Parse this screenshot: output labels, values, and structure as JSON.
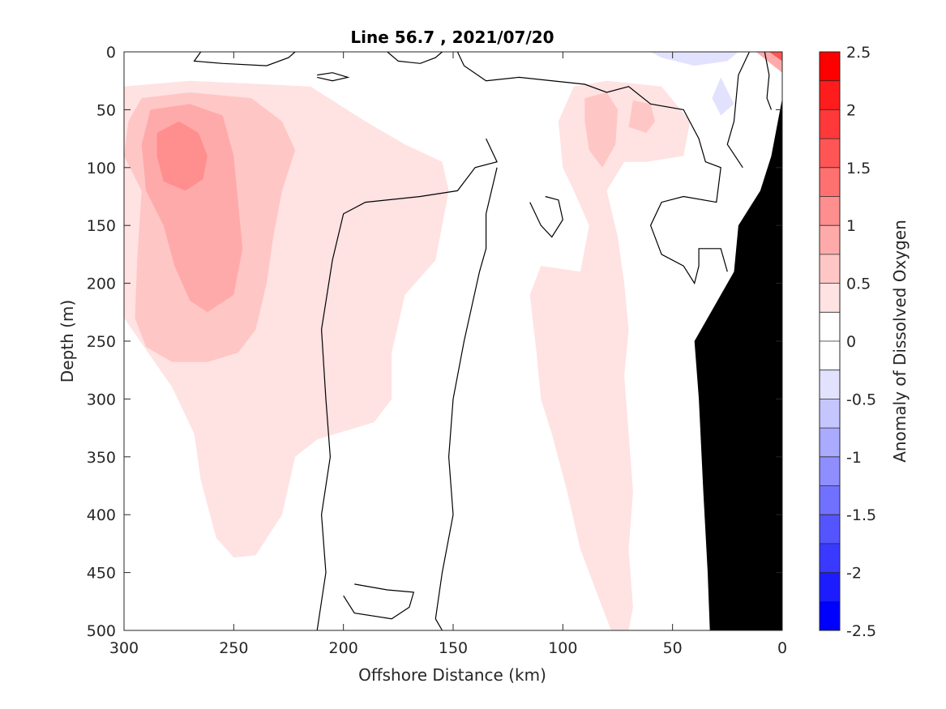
{
  "chart_data": {
    "type": "heatmap",
    "title": "Line 56.7 , 2021/07/20",
    "xlabel": "Offshore Distance (km)",
    "ylabel": "Depth (m)",
    "colorbar_label": "Anomaly of Dissolved Oxygen",
    "xlim": [
      300,
      0
    ],
    "ylim": [
      0,
      500
    ],
    "x_direction": "reversed",
    "y_direction": "reversed (depth increases downward)",
    "x_ticks": [
      "300",
      "250",
      "200",
      "150",
      "100",
      "50",
      "0"
    ],
    "y_ticks": [
      "0",
      "50",
      "100",
      "150",
      "200",
      "250",
      "300",
      "350",
      "400",
      "450",
      "500"
    ],
    "colorbar_ticks": [
      "2.5",
      "2",
      "1.5",
      "1",
      "0.5",
      "0",
      "-0.5",
      "-1",
      "-1.5",
      "-2",
      "-2.5"
    ],
    "colorbar_range": [
      -2.5,
      2.5
    ],
    "colorbar_levels": [
      {
        "from": 2.25,
        "to": 2.5,
        "color": "#ff0000"
      },
      {
        "from": 2.0,
        "to": 2.25,
        "color": "#ff1c1c"
      },
      {
        "from": 1.75,
        "to": 2.0,
        "color": "#ff3939"
      },
      {
        "from": 1.5,
        "to": 1.75,
        "color": "#ff5555"
      },
      {
        "from": 1.25,
        "to": 1.5,
        "color": "#ff7171"
      },
      {
        "from": 1.0,
        "to": 1.25,
        "color": "#ff8e8e"
      },
      {
        "from": 0.75,
        "to": 1.0,
        "color": "#ffaaaa"
      },
      {
        "from": 0.5,
        "to": 0.75,
        "color": "#ffc6c6"
      },
      {
        "from": 0.25,
        "to": 0.5,
        "color": "#ffe2e2"
      },
      {
        "from": 0.0,
        "to": 0.25,
        "color": "#ffffff"
      },
      {
        "from": -0.25,
        "to": 0.0,
        "color": "#ffffff"
      },
      {
        "from": -0.5,
        "to": -0.25,
        "color": "#e2e2ff"
      },
      {
        "from": -0.75,
        "to": -0.5,
        "color": "#c6c6ff"
      },
      {
        "from": -1.0,
        "to": -0.75,
        "color": "#aaaaff"
      },
      {
        "from": -1.25,
        "to": -1.0,
        "color": "#8e8eff"
      },
      {
        "from": -1.5,
        "to": -1.25,
        "color": "#7171ff"
      },
      {
        "from": -1.75,
        "to": -1.5,
        "color": "#5555ff"
      },
      {
        "from": -2.0,
        "to": -1.75,
        "color": "#3939ff"
      },
      {
        "from": -2.25,
        "to": -2.0,
        "color": "#1c1cff"
      },
      {
        "from": -2.5,
        "to": -2.25,
        "color": "#0000ff"
      }
    ],
    "regions": [
      {
        "name": "offshore-positive-anomaly",
        "level": 0.375,
        "color": "#ffe2e2",
        "points": [
          [
            300,
            30
          ],
          [
            270,
            25
          ],
          [
            215,
            30
          ],
          [
            190,
            60
          ],
          [
            172,
            80
          ],
          [
            155,
            95
          ],
          [
            152,
            120
          ],
          [
            158,
            180
          ],
          [
            172,
            210
          ],
          [
            178,
            260
          ],
          [
            178,
            300
          ],
          [
            186,
            320
          ],
          [
            212,
            335
          ],
          [
            222,
            350
          ],
          [
            228,
            400
          ],
          [
            240,
            435
          ],
          [
            250,
            437
          ],
          [
            258,
            420
          ],
          [
            265,
            370
          ],
          [
            268,
            330
          ],
          [
            278,
            290
          ],
          [
            300,
            230
          ]
        ]
      },
      {
        "name": "offshore-anomaly-core-1",
        "level": 0.625,
        "color": "#ffc6c6",
        "points": [
          [
            292,
            40
          ],
          [
            270,
            35
          ],
          [
            242,
            40
          ],
          [
            228,
            60
          ],
          [
            222,
            85
          ],
          [
            228,
            120
          ],
          [
            232,
            160
          ],
          [
            235,
            200
          ],
          [
            240,
            240
          ],
          [
            248,
            260
          ],
          [
            262,
            268
          ],
          [
            278,
            268
          ],
          [
            290,
            255
          ],
          [
            295,
            230
          ],
          [
            294,
            180
          ],
          [
            292,
            120
          ],
          [
            300,
            90
          ],
          [
            298,
            60
          ]
        ]
      },
      {
        "name": "offshore-anomaly-core-2",
        "level": 0.875,
        "color": "#ffaaaa",
        "points": [
          [
            288,
            50
          ],
          [
            270,
            45
          ],
          [
            255,
            55
          ],
          [
            250,
            90
          ],
          [
            248,
            130
          ],
          [
            246,
            170
          ],
          [
            250,
            210
          ],
          [
            262,
            225
          ],
          [
            270,
            215
          ],
          [
            277,
            185
          ],
          [
            282,
            150
          ],
          [
            290,
            120
          ],
          [
            292,
            80
          ]
        ]
      },
      {
        "name": "offshore-anomaly-core-3",
        "level": 1.125,
        "color": "#ff8e8e",
        "points": [
          [
            285,
            70
          ],
          [
            275,
            60
          ],
          [
            266,
            70
          ],
          [
            262,
            90
          ],
          [
            264,
            110
          ],
          [
            272,
            120
          ],
          [
            282,
            112
          ],
          [
            285,
            90
          ]
        ]
      },
      {
        "name": "midshelf-ridge-anomaly",
        "level": 0.375,
        "color": "#ffe2e2",
        "points": [
          [
            95,
            30
          ],
          [
            80,
            25
          ],
          [
            55,
            30
          ],
          [
            42,
            60
          ],
          [
            45,
            90
          ],
          [
            62,
            95
          ],
          [
            72,
            95
          ],
          [
            80,
            120
          ],
          [
            75,
            160
          ],
          [
            72,
            200
          ],
          [
            70,
            240
          ],
          [
            72,
            280
          ],
          [
            70,
            330
          ],
          [
            68,
            380
          ],
          [
            70,
            430
          ],
          [
            68,
            480
          ],
          [
            70,
            500
          ],
          [
            78,
            500
          ],
          [
            84,
            470
          ],
          [
            92,
            430
          ],
          [
            98,
            380
          ],
          [
            105,
            330
          ],
          [
            110,
            300
          ],
          [
            112,
            260
          ],
          [
            115,
            210
          ],
          [
            110,
            185
          ],
          [
            92,
            190
          ],
          [
            88,
            150
          ],
          [
            95,
            120
          ],
          [
            100,
            100
          ],
          [
            102,
            60
          ]
        ]
      },
      {
        "name": "midshelf-anomaly-core-left",
        "level": 0.625,
        "color": "#ffc6c6",
        "points": [
          [
            90,
            40
          ],
          [
            80,
            35
          ],
          [
            75,
            50
          ],
          [
            76,
            80
          ],
          [
            82,
            100
          ],
          [
            88,
            85
          ],
          [
            90,
            60
          ]
        ]
      },
      {
        "name": "midshelf-anomaly-core-right",
        "level": 0.625,
        "color": "#ffc6c6",
        "points": [
          [
            68,
            42
          ],
          [
            60,
            45
          ],
          [
            58,
            60
          ],
          [
            62,
            70
          ],
          [
            70,
            65
          ]
        ]
      },
      {
        "name": "nearshore-negative-anomaly-top",
        "level": -0.375,
        "color": "#e2e2ff",
        "points": [
          [
            60,
            0
          ],
          [
            55,
            5
          ],
          [
            40,
            12
          ],
          [
            25,
            8
          ],
          [
            20,
            0
          ]
        ]
      },
      {
        "name": "nearshore-negative-anomaly-drop",
        "level": -0.375,
        "color": "#e2e2ff",
        "points": [
          [
            28,
            22
          ],
          [
            22,
            45
          ],
          [
            28,
            55
          ],
          [
            32,
            40
          ]
        ]
      },
      {
        "name": "coastal-positive-anomaly",
        "level": 0.875,
        "color": "#ffaaaa",
        "points": [
          [
            12,
            0
          ],
          [
            0,
            0
          ],
          [
            0,
            18
          ]
        ]
      },
      {
        "name": "coastal-strong-positive-anomaly",
        "level": 1.875,
        "color": "#ff5555",
        "points": [
          [
            6,
            0
          ],
          [
            0,
            0
          ],
          [
            0,
            8
          ]
        ]
      }
    ],
    "zero_contours": [
      {
        "name": "zero-contour-main",
        "points": [
          [
            148,
            0
          ],
          [
            145,
            12
          ],
          [
            135,
            25
          ],
          [
            120,
            22
          ],
          [
            90,
            28
          ],
          [
            80,
            35
          ],
          [
            70,
            30
          ],
          [
            60,
            45
          ],
          [
            45,
            50
          ],
          [
            38,
            75
          ],
          [
            35,
            95
          ],
          [
            28,
            100
          ],
          [
            30,
            130
          ],
          [
            45,
            125
          ],
          [
            55,
            130
          ],
          [
            60,
            150
          ],
          [
            55,
            175
          ],
          [
            45,
            185
          ],
          [
            40,
            200
          ],
          [
            38,
            185
          ],
          [
            38,
            170
          ],
          [
            28,
            170
          ],
          [
            25,
            190
          ]
        ]
      },
      {
        "name": "zero-contour-offshore-channel",
        "points": [
          [
            135,
            75
          ],
          [
            130,
            95
          ],
          [
            140,
            100
          ],
          [
            148,
            120
          ],
          [
            165,
            125
          ],
          [
            190,
            130
          ],
          [
            200,
            140
          ],
          [
            205,
            180
          ],
          [
            210,
            240
          ],
          [
            208,
            300
          ],
          [
            206,
            350
          ],
          [
            210,
            400
          ],
          [
            208,
            450
          ],
          [
            212,
            500
          ]
        ]
      },
      {
        "name": "zero-contour-inshore-channel",
        "points": [
          [
            130,
            100
          ],
          [
            135,
            140
          ],
          [
            135,
            170
          ],
          [
            138,
            190
          ],
          [
            145,
            250
          ],
          [
            150,
            300
          ],
          [
            152,
            350
          ],
          [
            150,
            400
          ],
          [
            155,
            450
          ],
          [
            158,
            490
          ],
          [
            155,
            500
          ]
        ]
      },
      {
        "name": "zero-contour-loop-top-left",
        "points": [
          [
            265,
            0
          ],
          [
            268,
            8
          ],
          [
            255,
            10
          ],
          [
            235,
            12
          ],
          [
            225,
            5
          ],
          [
            222,
            0
          ]
        ]
      },
      {
        "name": "zero-contour-loop-small-top",
        "points": [
          [
            212,
            20
          ],
          [
            205,
            18
          ],
          [
            198,
            22
          ],
          [
            205,
            25
          ],
          [
            212,
            22
          ]
        ]
      },
      {
        "name": "zero-contour-loop-top-mid",
        "points": [
          [
            180,
            0
          ],
          [
            175,
            8
          ],
          [
            165,
            10
          ],
          [
            158,
            5
          ],
          [
            155,
            0
          ]
        ]
      },
      {
        "name": "zero-contour-loop-island",
        "points": [
          [
            115,
            130
          ],
          [
            110,
            150
          ],
          [
            105,
            160
          ],
          [
            100,
            145
          ],
          [
            102,
            128
          ],
          [
            108,
            125
          ]
        ]
      },
      {
        "name": "zero-contour-loop-bottom",
        "points": [
          [
            200,
            470
          ],
          [
            195,
            485
          ],
          [
            178,
            490
          ],
          [
            170,
            480
          ],
          [
            168,
            467
          ],
          [
            180,
            465
          ],
          [
            195,
            460
          ]
        ]
      },
      {
        "name": "zero-contour-nearshore",
        "points": [
          [
            15,
            0
          ],
          [
            20,
            20
          ],
          [
            22,
            60
          ],
          [
            25,
            80
          ],
          [
            18,
            100
          ]
        ]
      },
      {
        "name": "zero-contour-coast",
        "points": [
          [
            8,
            0
          ],
          [
            6,
            20
          ],
          [
            7,
            40
          ],
          [
            5,
            50
          ]
        ]
      }
    ],
    "bathymetry_mask": {
      "name": "seafloor",
      "color": "#000000",
      "points": [
        [
          0,
          40
        ],
        [
          0,
          500
        ],
        [
          33,
          500
        ],
        [
          34,
          450
        ],
        [
          36,
          380
        ],
        [
          38,
          300
        ],
        [
          40,
          250
        ],
        [
          22,
          190
        ],
        [
          20,
          150
        ],
        [
          10,
          120
        ],
        [
          5,
          90
        ],
        [
          2,
          60
        ]
      ]
    }
  }
}
